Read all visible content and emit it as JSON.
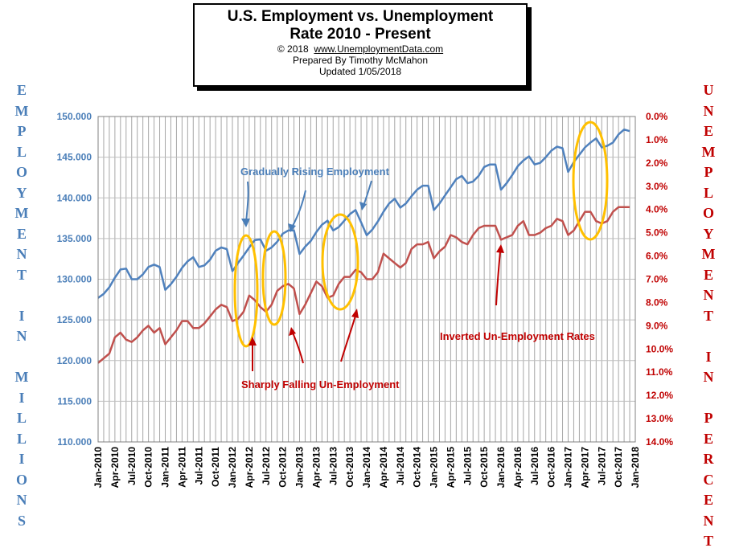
{
  "title": {
    "line1": "U.S. Employment vs. Unemployment",
    "line2": "Rate 2010 - Present",
    "copyright": "© 2018",
    "url": "www.UnemploymentData.com",
    "prepared": "Prepared  By Timothy McMahon",
    "updated": "Updated  1/05/2018"
  },
  "left_axis_label": "EMPLOYMENT IN MILLIONS",
  "right_axis_label": "UNEMPLOYMENT IN PERCENT",
  "colors": {
    "employment": "#4f81bd",
    "unemployment": "#c0504d",
    "annotation_blue": "#4a7eb8",
    "annotation_red": "#c00000",
    "ellipse": "#ffc000",
    "grid": "#a6a6a6"
  },
  "chart_data": {
    "type": "line",
    "x_tick_labels": [
      "Jan-2010",
      "Apr-2010",
      "Jul-2010",
      "Oct-2010",
      "Jan-2011",
      "Apr-2011",
      "Jul-2011",
      "Oct-2011",
      "Jan-2012",
      "Apr-2012",
      "Jul-2012",
      "Oct-2012",
      "Jan-2013",
      "Apr-2013",
      "Jul-2013",
      "Oct-2013",
      "Jan-2014",
      "Apr-2014",
      "Jul-2014",
      "Oct-2014",
      "Jan-2015",
      "Apr-2015",
      "Jul-2015",
      "Oct-2015",
      "Jan-2016",
      "Apr-2016",
      "Jul-2016",
      "Oct-2016",
      "Jan-2017",
      "Apr-2017",
      "Jul-2017",
      "Oct-2017",
      "Jan-2018"
    ],
    "y_left": {
      "min": 110,
      "max": 150,
      "step": 5,
      "tick_labels": [
        "110.000",
        "115.000",
        "120.000",
        "125.000",
        "130.000",
        "135.000",
        "140.000",
        "145.000",
        "150.000"
      ]
    },
    "y_right": {
      "min": 0,
      "max": 14,
      "step": 1,
      "inverted": true,
      "tick_labels": [
        "0.0%",
        "1.0%",
        "2.0%",
        "3.0%",
        "4.0%",
        "5.0%",
        "6.0%",
        "7.0%",
        "8.0%",
        "9.0%",
        "10.0%",
        "11.0%",
        "12.0%",
        "13.0%",
        "14.0%"
      ]
    },
    "grid": true,
    "series": [
      {
        "axis": "left",
        "values": [
          127.7,
          128.2,
          129.0,
          130.2,
          131.2,
          131.3,
          130.0,
          130.0,
          130.6,
          131.5,
          131.8,
          131.5,
          128.7,
          129.4,
          130.3,
          131.4,
          132.2,
          132.7,
          131.5,
          131.7,
          132.4,
          133.5,
          133.9,
          133.7,
          131.0,
          132.0,
          132.9,
          133.9,
          134.8,
          134.9,
          133.5,
          133.9,
          134.6,
          135.6,
          136.0,
          136.0,
          133.1,
          134.0,
          134.7,
          135.8,
          136.7,
          137.2,
          136.0,
          136.4,
          137.2,
          138.0,
          138.5,
          137.0,
          135.4,
          136.1,
          137.1,
          138.3,
          139.3,
          139.9,
          138.8,
          139.3,
          140.2,
          141.0,
          141.5,
          141.5,
          138.5,
          139.3,
          140.3,
          141.3,
          142.3,
          142.7,
          141.8,
          142.0,
          142.7,
          143.8,
          144.1,
          144.1,
          141.0,
          141.8,
          142.8,
          143.9,
          144.6,
          145.1,
          144.1,
          144.3,
          145.0,
          145.8,
          146.3,
          146.1,
          143.2,
          144.4,
          145.3,
          146.2,
          146.8,
          147.3,
          146.2,
          146.4,
          146.8,
          147.8,
          148.4,
          148.2
        ]
      },
      {
        "axis": "right",
        "values": [
          10.6,
          10.4,
          10.2,
          9.5,
          9.3,
          9.6,
          9.7,
          9.5,
          9.2,
          9.0,
          9.3,
          9.1,
          9.8,
          9.5,
          9.2,
          8.8,
          8.8,
          9.1,
          9.1,
          8.9,
          8.6,
          8.3,
          8.1,
          8.2,
          8.8,
          8.7,
          8.4,
          7.7,
          7.9,
          8.2,
          8.4,
          8.1,
          7.5,
          7.3,
          7.2,
          7.4,
          8.5,
          8.1,
          7.6,
          7.1,
          7.3,
          7.8,
          7.7,
          7.2,
          6.9,
          6.9,
          6.6,
          6.7,
          7.0,
          7.0,
          6.7,
          5.9,
          6.1,
          6.3,
          6.5,
          6.3,
          5.7,
          5.5,
          5.5,
          5.4,
          6.1,
          5.8,
          5.6,
          5.1,
          5.2,
          5.4,
          5.5,
          5.1,
          4.8,
          4.7,
          4.7,
          4.7,
          5.3,
          5.2,
          5.1,
          4.7,
          4.5,
          5.1,
          5.1,
          5.0,
          4.8,
          4.7,
          4.4,
          4.5,
          5.1,
          4.9,
          4.5,
          4.1,
          4.1,
          4.5,
          4.6,
          4.5,
          4.1,
          3.9,
          3.9,
          3.9
        ]
      }
    ],
    "annotations": [
      {
        "text": "Gradually Rising Employment",
        "color": "blue"
      },
      {
        "text": "Sharply Falling Un-Employment",
        "color": "red"
      },
      {
        "text": "Inverted Un-Employment Rates",
        "color": "red"
      }
    ]
  }
}
